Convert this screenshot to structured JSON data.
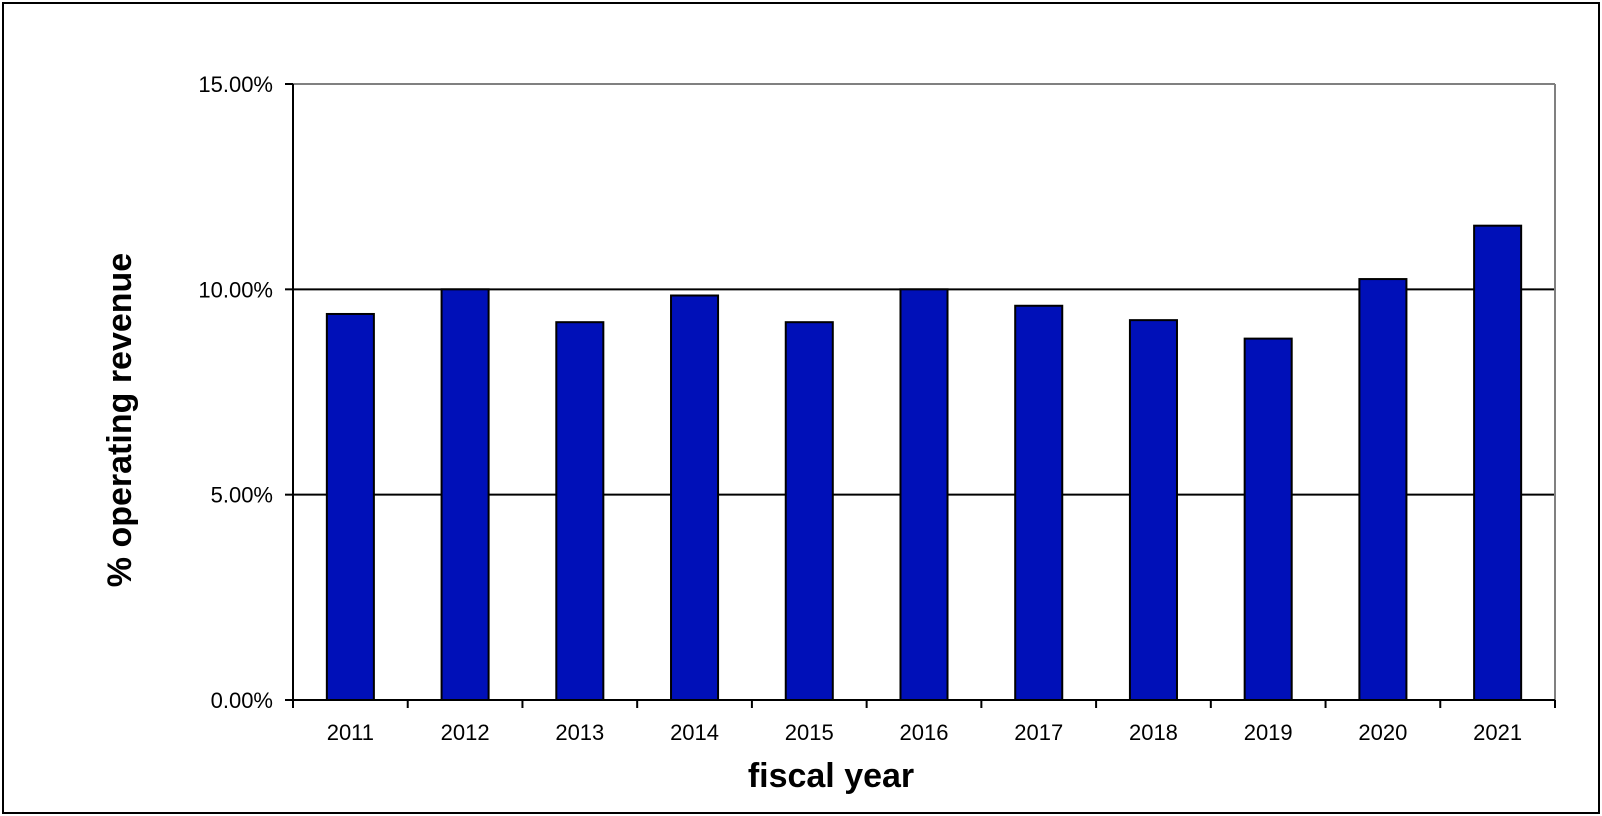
{
  "chart_data": {
    "type": "bar",
    "title": "",
    "xlabel": "fiscal year",
    "ylabel": "% operating revenue",
    "categories": [
      "2011",
      "2012",
      "2013",
      "2014",
      "2015",
      "2016",
      "2017",
      "2018",
      "2019",
      "2020",
      "2021"
    ],
    "series": [
      {
        "values": [
          9.4,
          10.0,
          9.2,
          9.85,
          9.2,
          10.0,
          9.6,
          9.25,
          8.8,
          10.25,
          11.55
        ]
      }
    ],
    "ylim": [
      0,
      15
    ],
    "yticks": [
      0,
      5,
      10,
      15
    ],
    "ytick_labels": [
      "0.00%",
      "5.00%",
      "10.00%",
      "15.00%"
    ],
    "grid": "horizontal",
    "legend": "none",
    "colors": {
      "bar_fill": "#0010b8",
      "bar_stroke": "#000000",
      "grid": "#000000",
      "plot_border": "#808080"
    }
  }
}
